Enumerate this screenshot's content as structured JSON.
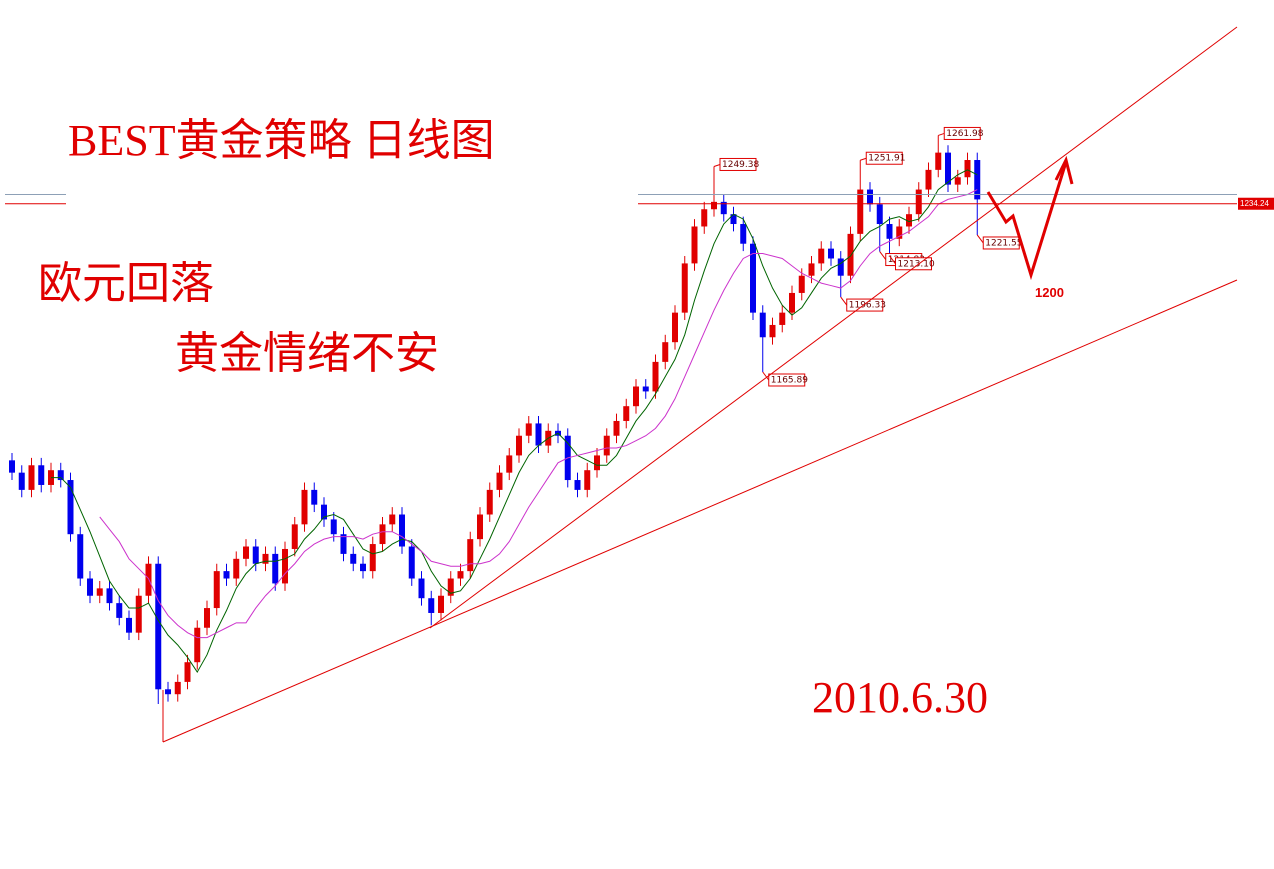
{
  "chart_data": {
    "type": "candlestick",
    "title": "BEST黄金策略 日线图",
    "texts": [
      "欧元回落",
      "黄金情绪不安"
    ],
    "date_label": "2010.6.30",
    "target_label": "1200",
    "ylim": [
      964,
      1317
    ],
    "up_color": "#e00000",
    "down_color": "#0000ee",
    "open": [
      1130,
      1125,
      1118,
      1128,
      1120,
      1126,
      1122,
      1100,
      1082,
      1075,
      1078,
      1072,
      1066,
      1060,
      1075,
      1088,
      1037,
      1035,
      1040,
      1048,
      1062,
      1070,
      1085,
      1082,
      1090,
      1095,
      1088,
      1092,
      1080,
      1094,
      1104,
      1118,
      1112,
      1106,
      1100,
      1092,
      1088,
      1085,
      1096,
      1104,
      1108,
      1095,
      1082,
      1074,
      1068,
      1075,
      1082,
      1085,
      1098,
      1108,
      1118,
      1125,
      1132,
      1140,
      1145,
      1136,
      1142,
      1140,
      1122,
      1118,
      1126,
      1132,
      1140,
      1146,
      1152,
      1160,
      1158,
      1170,
      1178,
      1190,
      1210,
      1225,
      1232,
      1235,
      1230,
      1226,
      1218,
      1190,
      1180,
      1185,
      1190,
      1198,
      1205,
      1210,
      1216,
      1212,
      1205,
      1222,
      1240,
      1234,
      1226,
      1220,
      1225,
      1230,
      1240,
      1248,
      1255,
      1242,
      1245,
      1252
    ],
    "high": [
      1133,
      1128,
      1131,
      1131,
      1129,
      1129,
      1125,
      1103,
      1085,
      1081,
      1081,
      1075,
      1069,
      1078,
      1091,
      1091,
      1040,
      1043,
      1051,
      1065,
      1073,
      1088,
      1088,
      1093,
      1098,
      1098,
      1095,
      1095,
      1097,
      1107,
      1121,
      1121,
      1115,
      1109,
      1103,
      1095,
      1091,
      1099,
      1107,
      1111,
      1111,
      1098,
      1085,
      1077,
      1078,
      1085,
      1088,
      1101,
      1111,
      1121,
      1128,
      1135,
      1143,
      1148,
      1148,
      1145,
      1145,
      1143,
      1125,
      1129,
      1135,
      1143,
      1149,
      1155,
      1163,
      1163,
      1173,
      1181,
      1193,
      1213,
      1228,
      1235,
      1249.38,
      1238,
      1233,
      1229,
      1221,
      1193,
      1188,
      1193,
      1201,
      1208,
      1213,
      1219,
      1219,
      1215,
      1225,
      1251.91,
      1243,
      1237,
      1229,
      1228,
      1233,
      1243,
      1251,
      1261.98,
      1258,
      1248,
      1255,
      1255
    ],
    "low": [
      1122,
      1115,
      1115,
      1117,
      1117,
      1119,
      1097,
      1079,
      1072,
      1072,
      1069,
      1063,
      1057,
      1057,
      1072,
      1031,
      1032,
      1032,
      1037,
      1045,
      1059,
      1067,
      1079,
      1079,
      1087,
      1085,
      1085,
      1077,
      1077,
      1091,
      1101,
      1109,
      1103,
      1097,
      1089,
      1085,
      1082,
      1082,
      1093,
      1101,
      1092,
      1079,
      1071,
      1063,
      1065,
      1072,
      1079,
      1082,
      1095,
      1105,
      1115,
      1122,
      1129,
      1137,
      1133,
      1133,
      1137,
      1119,
      1115,
      1115,
      1123,
      1129,
      1137,
      1143,
      1149,
      1155,
      1155,
      1167,
      1175,
      1187,
      1207,
      1222,
      1229,
      1227,
      1223,
      1215,
      1187,
      1165.89,
      1177,
      1182,
      1187,
      1195,
      1202,
      1207,
      1209,
      1196.33,
      1202,
      1219,
      1231,
      1214.82,
      1213.1,
      1217,
      1222,
      1227,
      1237,
      1245,
      1239,
      1239,
      1242,
      1221.55
    ],
    "close": [
      1125,
      1118,
      1128,
      1120,
      1126,
      1122,
      1100,
      1082,
      1075,
      1078,
      1072,
      1066,
      1060,
      1075,
      1088,
      1037,
      1035,
      1040,
      1048,
      1062,
      1070,
      1085,
      1082,
      1090,
      1095,
      1088,
      1092,
      1080,
      1094,
      1104,
      1118,
      1112,
      1106,
      1100,
      1092,
      1088,
      1085,
      1096,
      1104,
      1108,
      1095,
      1082,
      1074,
      1068,
      1075,
      1082,
      1085,
      1098,
      1108,
      1118,
      1125,
      1132,
      1140,
      1145,
      1136,
      1142,
      1140,
      1122,
      1118,
      1126,
      1132,
      1140,
      1146,
      1152,
      1160,
      1158,
      1170,
      1178,
      1190,
      1210,
      1225,
      1232,
      1235,
      1230,
      1226,
      1218,
      1190,
      1180,
      1185,
      1190,
      1198,
      1205,
      1210,
      1216,
      1212,
      1205,
      1222,
      1240,
      1234,
      1226,
      1220,
      1225,
      1230,
      1240,
      1248,
      1255,
      1242,
      1245,
      1252,
      1236
    ],
    "moving_averages": [
      {
        "color": "#006400",
        "values": [
          null,
          null,
          null,
          null,
          1123,
          1123,
          1119,
          1110,
          1101,
          1091,
          1081,
          1075,
          1070,
          1070,
          1072,
          1065,
          1059,
          1055,
          1050,
          1044,
          1051,
          1061,
          1069,
          1078,
          1084,
          1088,
          1089,
          1089,
          1090,
          1092,
          1098,
          1102,
          1107,
          1108,
          1106,
          1100,
          1094,
          1092,
          1093,
          1096,
          1098,
          1097,
          1093,
          1085,
          1079,
          1076,
          1077,
          1082,
          1090,
          1098,
          1107,
          1116,
          1125,
          1132,
          1136,
          1139,
          1141,
          1137,
          1132,
          1130,
          1128,
          1128,
          1132,
          1139,
          1146,
          1151,
          1157,
          1164,
          1171,
          1181,
          1195,
          1207,
          1218,
          1226,
          1230,
          1228,
          1220,
          1209,
          1200,
          1193,
          1189,
          1192,
          1198,
          1204,
          1208,
          1210,
          1213,
          1219,
          1223,
          1225,
          1228,
          1229,
          1227,
          1228,
          1233,
          1240,
          1243,
          1246,
          1248,
          1246
        ]
      },
      {
        "color": "#cc33cc",
        "values": [
          null,
          null,
          null,
          null,
          null,
          null,
          null,
          null,
          null,
          1107,
          1102,
          1097,
          1090,
          1086,
          1082,
          1073,
          1067,
          1063,
          1060,
          1058,
          1058,
          1060,
          1062,
          1064,
          1064,
          1070,
          1075,
          1079,
          1084,
          1088,
          1093,
          1096,
          1098,
          1099,
          1099,
          1099,
          1098,
          1100,
          1101,
          1101,
          1099,
          1096,
          1093,
          1089,
          1088,
          1087,
          1087,
          1088,
          1088,
          1089,
          1092,
          1097,
          1104,
          1111,
          1117,
          1123,
          1129,
          1131,
          1132,
          1133,
          1134,
          1135,
          1135,
          1136,
          1138,
          1140,
          1143,
          1148,
          1155,
          1164,
          1173,
          1182,
          1191,
          1199,
          1206,
          1212,
          1214,
          1214,
          1213,
          1212,
          1209,
          1206,
          1204,
          1202,
          1201,
          1200,
          1203,
          1209,
          1214,
          1217,
          1219,
          1221,
          1223,
          1226,
          1229,
          1234,
          1236,
          1237,
          1238,
          1240
        ]
      }
    ],
    "price_line": {
      "value": 1234.24,
      "color": "#e00000"
    },
    "ref_line": {
      "value": 1238,
      "color": "#8da0b6"
    },
    "price_labels": [
      {
        "index": 72,
        "field": "high",
        "label": "1249.38"
      },
      {
        "index": 87,
        "field": "high",
        "label": "1251.91"
      },
      {
        "index": 95,
        "field": "high",
        "label": "1261.98"
      },
      {
        "index": 77,
        "field": "low",
        "label": "1165.89"
      },
      {
        "index": 85,
        "field": "low",
        "label": "1196.33"
      },
      {
        "index": 89,
        "field": "low",
        "label": "1214.82"
      },
      {
        "index": 90,
        "field": "low",
        "label": "1213.10"
      },
      {
        "index": 99,
        "field": "low",
        "label": "1221.55"
      }
    ]
  }
}
